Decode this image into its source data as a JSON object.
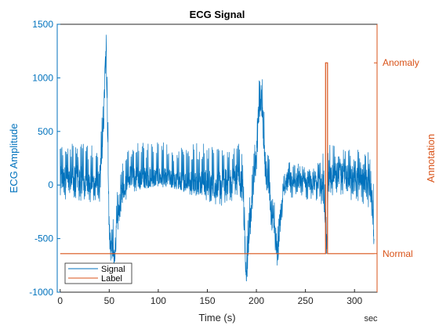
{
  "chart_data": {
    "type": "line",
    "title": "ECG Signal",
    "xlabel": "Time (s)",
    "x_unit": "sec",
    "ylabel_left": "ECG Amplitude",
    "ylabel_right": "Annotation",
    "xlim": [
      -3,
      323
    ],
    "ylim_left": [
      -1000,
      1500
    ],
    "x_ticks": [
      "0",
      "50",
      "100",
      "150",
      "200",
      "250",
      "300"
    ],
    "y_ticks_left": [
      "-1000",
      "-500",
      "0",
      "500",
      "1000",
      "1500"
    ],
    "y_ticks_right": [
      "Normal",
      "Anomaly"
    ],
    "legend": [
      "Signal",
      "Label"
    ],
    "legend_position": "bottom-left",
    "grid": false,
    "colors": {
      "signal": "#0072BD",
      "label": "#D95319",
      "axis_left": "#0072BD",
      "axis_right": "#D95319"
    },
    "series": [
      {
        "name": "Signal",
        "axis": "left",
        "x": [
          0,
          5,
          10,
          15,
          20,
          25,
          30,
          35,
          40,
          44,
          46,
          47,
          48,
          50,
          52,
          55,
          58,
          62,
          70,
          80,
          100,
          120,
          140,
          160,
          175,
          182,
          186,
          189,
          190,
          193,
          196,
          200,
          203,
          205,
          207,
          210,
          213,
          216,
          220,
          222,
          225,
          230,
          250,
          268,
          271,
          272,
          273,
          275,
          280,
          300,
          315,
          319,
          320
        ],
        "y": [
          50,
          60,
          80,
          60,
          50,
          40,
          30,
          20,
          10,
          500,
          1150,
          1190,
          700,
          -400,
          -600,
          -680,
          -400,
          -100,
          100,
          60,
          80,
          40,
          30,
          10,
          40,
          100,
          0,
          -700,
          -830,
          -400,
          -100,
          300,
          700,
          850,
          500,
          100,
          0,
          -300,
          -500,
          -630,
          -200,
          50,
          30,
          0,
          -400,
          -560,
          0,
          100,
          120,
          60,
          30,
          -200,
          -550
        ],
        "band_upper": [
          400,
          400,
          420,
          410,
          400,
          380,
          400,
          350,
          300,
          400,
          400,
          350,
          450,
          400,
          420,
          420,
          400,
          380,
          400,
          320,
          200,
          200,
          180,
          180,
          350,
          400,
          300,
          300,
          350,
          300,
          400
        ],
        "band_lower": [
          -250,
          -250,
          -250,
          -230,
          -220,
          -220,
          -230,
          -200,
          -200,
          -150,
          -100,
          -100,
          -180,
          -260,
          -250,
          -230,
          -200,
          -200,
          -220,
          -230,
          -180,
          -200,
          -200,
          -200,
          -250,
          -280,
          -270,
          -250,
          -300,
          -300,
          -300
        ],
        "band_x": [
          0,
          10,
          20,
          30,
          40,
          45,
          55,
          60,
          70,
          80,
          100,
          120,
          140,
          160,
          170,
          180,
          185,
          195,
          210,
          220,
          230,
          240,
          250,
          260,
          265,
          270,
          280,
          290,
          300,
          310,
          320
        ]
      },
      {
        "name": "Label",
        "axis": "right",
        "x": [
          0,
          270.5,
          270.5,
          272.5,
          272.5,
          320
        ],
        "y": [
          0,
          0,
          1,
          1,
          0,
          0
        ]
      }
    ]
  }
}
